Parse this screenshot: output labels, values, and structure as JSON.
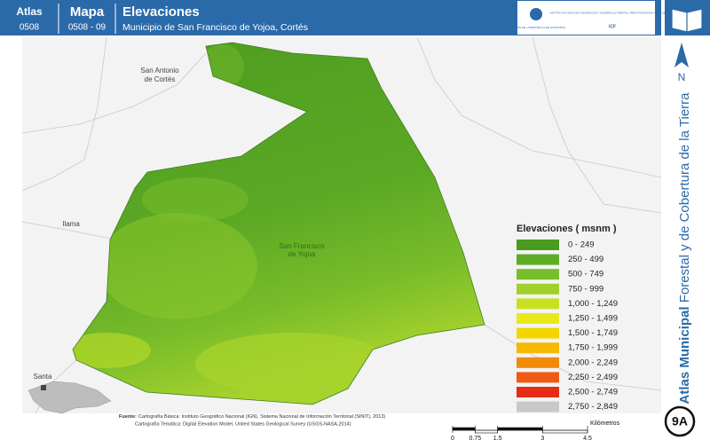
{
  "header": {
    "atlas_label": "Atlas",
    "atlas_code": "0508",
    "mapa_label": "Mapa",
    "mapa_code": "0508 - 09",
    "title": "Elevaciones",
    "subtitle": "Municipio de San Francisco de Yojoa, Cortés",
    "logo_left": "GOBIERNO DE LA REPÚBLICA DE HONDURAS",
    "logo_right": "INSTITUTO NACIONAL DE CONSERVACIÓN Y DESARROLLO FORESTAL, ÁREAS PROTEGIDAS Y VIDA SILVESTRE",
    "logo_right_code": "ICF"
  },
  "places": [
    {
      "label": "San Antonio"
    },
    {
      "label": "de Cortés"
    },
    {
      "label": "Ilama"
    },
    {
      "label": "San Francisco"
    },
    {
      "label": "de Yojoa"
    },
    {
      "label": "Santa"
    }
  ],
  "legend": {
    "title": "Elevaciones ( msnm )",
    "items": [
      {
        "label": "0 - 249",
        "color": "#4a9a1e"
      },
      {
        "label": "250 - 499",
        "color": "#5eac24"
      },
      {
        "label": "500 - 749",
        "color": "#78be2a"
      },
      {
        "label": "750 - 999",
        "color": "#9fd02c"
      },
      {
        "label": "1,000 - 1,249",
        "color": "#c9e021"
      },
      {
        "label": "1,250 - 1,499",
        "color": "#e9e91a"
      },
      {
        "label": "1,500 - 1,749",
        "color": "#f3d500"
      },
      {
        "label": "1,750 - 1,999",
        "color": "#f6b900"
      },
      {
        "label": "2,000 - 2,249",
        "color": "#f28b0c"
      },
      {
        "label": "2,250 - 2,499",
        "color": "#ee5b14"
      },
      {
        "label": "2,500 - 2,749",
        "color": "#e62c14"
      },
      {
        "label": "2,750 - 2,849",
        "color": "#c9c9c9"
      }
    ]
  },
  "side": {
    "title_bold": "Atlas Municipal",
    "title_rest": " Forestal y de Cobertura de la Tierra",
    "north": "N",
    "badge": "9A"
  },
  "sources": {
    "label": "Fuente:",
    "line1": "Cartografía Básica: Instituto Geográfico Nacional (IGN), Sistema Nacional de Información Territorial (SINIT), 2013)",
    "line2": "Cartografía Temática: Digital Elevation Model, United States Geological Survey (USGS-NASA,2014)"
  },
  "scale": {
    "unit": "Kilómetros",
    "ticks": [
      0,
      0.75,
      1.5,
      3,
      4.5
    ]
  }
}
